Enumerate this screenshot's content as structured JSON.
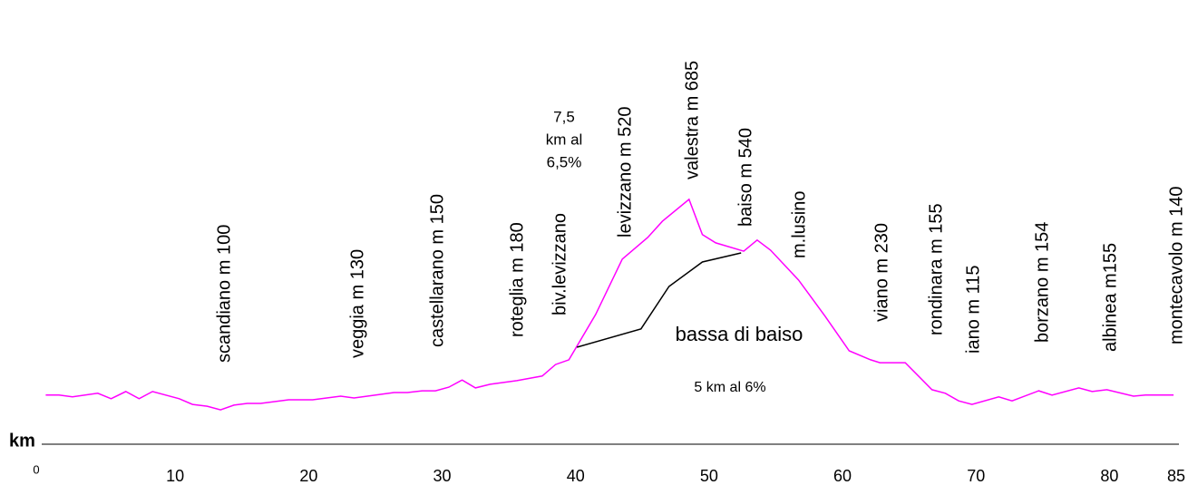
{
  "chart_data": {
    "type": "line",
    "x_label": "km",
    "xlim": [
      0,
      85
    ],
    "xticks": [
      0,
      10,
      20,
      30,
      40,
      50,
      60,
      70,
      80,
      85
    ],
    "ylim": [
      0,
      1237
    ],
    "series": [
      {
        "color": "#ff00ff",
        "x": [
          0.3,
          1.3,
          2.3,
          4.2,
          5.2,
          6.3,
          7.3,
          8.3,
          10.3,
          11.3,
          12.4,
          13.4,
          14.4,
          15.4,
          16.4,
          18.5,
          20.3,
          22.4,
          23.4,
          25.4,
          26.4,
          27.4,
          28.5,
          29.5,
          30.5,
          31.5,
          32.5,
          33.6,
          35.6,
          37.5,
          38.5,
          39.5,
          41.5,
          43.5,
          45.4,
          46.5,
          48.5,
          49.5,
          50.5,
          52.6,
          53.6,
          54.6,
          56.7,
          58.7,
          60.5,
          62.1,
          62.8,
          64.7,
          66.7,
          67.7,
          68.7,
          69.7,
          71.7,
          72.7,
          74.7,
          75.7,
          77.7,
          78.7,
          79.8,
          81.8,
          82.7,
          84.8
        ],
        "values": [
          139,
          139,
          134,
          144,
          129,
          149,
          129,
          149,
          129,
          113,
          108,
          98,
          111,
          116,
          116,
          126,
          126,
          136,
          131,
          141,
          146,
          146,
          151,
          151,
          161,
          181,
          159,
          169,
          179,
          192,
          224,
          237,
          363,
          517,
          577,
          622,
          683,
          585,
          562,
          539,
          570,
          542,
          459,
          358,
          262,
          237,
          229,
          229,
          154,
          144,
          123,
          113,
          134,
          123,
          151,
          139,
          159,
          149,
          154,
          136,
          139,
          139
        ]
      },
      {
        "color": "#000000",
        "x": [
          40.1,
          44.9,
          47.0,
          49.5,
          52.4
        ],
        "values": [
          272,
          323,
          441,
          509,
          534
        ]
      }
    ],
    "annotations": [
      "scandiano m 100",
      "veggia m 130",
      "castellarano m 150",
      "roteglia m 180",
      "biv.levizzano",
      "levizzano m 520",
      "valestra m 685",
      "baiso m 540",
      "m.lusino",
      "viano m 230",
      "rondinara m 155",
      "iano m 115",
      "borzano m 154",
      "albinea m155",
      "montecavolo  m 140"
    ],
    "climb_note": [
      "7,5",
      "km al",
      "6,5%"
    ],
    "detour_label": "bassa di baiso",
    "detour_note": "5 km al 6%"
  }
}
